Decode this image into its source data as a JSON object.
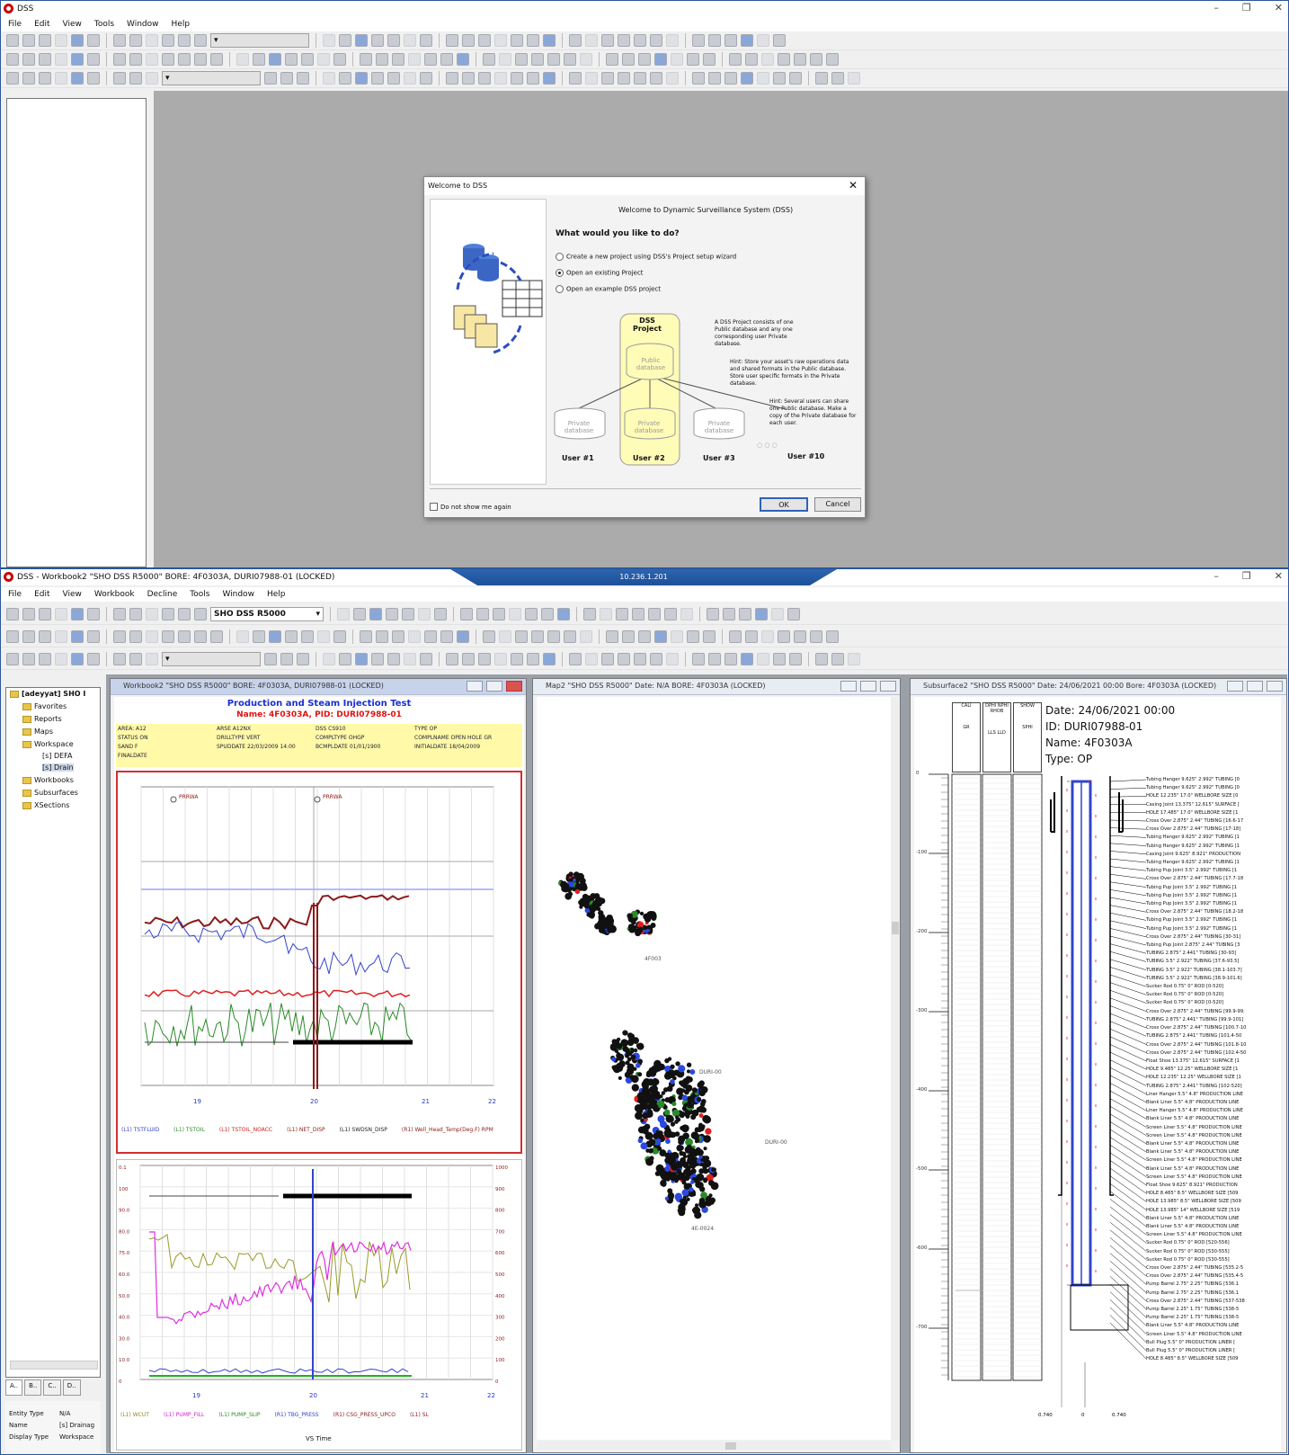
{
  "top_window": {
    "title": "DSS",
    "menu": [
      "File",
      "Edit",
      "View",
      "Tools",
      "Window",
      "Help"
    ],
    "window_controls": [
      "–",
      "❐",
      "✕"
    ]
  },
  "welcome_dialog": {
    "title": "Welcome to DSS",
    "header": "Welcome to Dynamic Surveillance System (DSS)",
    "question": "What would you like to do?",
    "options": [
      {
        "label": "Create a new project using DSS's Project setup wizard",
        "selected": false
      },
      {
        "label": "Open an existing Project",
        "selected": true
      },
      {
        "label": "Open an example DSS project",
        "selected": false
      }
    ],
    "diagram": {
      "project_label": "DSS Project",
      "public_db": "Public database",
      "private_db": "Private database",
      "users": [
        "User #1",
        "User #2",
        "User #3",
        "User #10"
      ],
      "ellipsis": "○ ○ ○"
    },
    "info_text": "A DSS Project consists of one Public database and any one corresponding user Private database.",
    "hint1": "Hint: Store your asset's raw operations data and shared formats in the Public database. Store user specific formats in the Private database.",
    "hint2": "Hint: Several users can share one Public database. Make a copy of the Private database for each user.",
    "dont_show": "Do not show me again",
    "ok": "OK",
    "cancel": "Cancel"
  },
  "bottom_window": {
    "title": "DSS - Workbook2 \"SHO DSS R5000\" BORE: 4F0303A, DURI07988-01 (LOCKED)",
    "menu": [
      "File",
      "Edit",
      "View",
      "Workbook",
      "Decline",
      "Tools",
      "Window",
      "Help"
    ],
    "remote_bar": "10.236.1.201",
    "combo_value": "SHO DSS R5000",
    "window_controls": [
      "–",
      "❐",
      "✕"
    ]
  },
  "tree": {
    "root": "[adeyyat] SHO I",
    "items": [
      "Favorites",
      "Reports",
      "Maps",
      "Workspace",
      "[s] DEFA",
      "[s] Drain",
      "Workbooks",
      "Subsurfaces",
      "XSections"
    ],
    "tabs": [
      "A..",
      "B..",
      "C..",
      "D.."
    ],
    "props": [
      {
        "k": "Entity Type",
        "v": "N/A"
      },
      {
        "k": "Name",
        "v": "[s] Drainag"
      },
      {
        "k": "Display Type",
        "v": "Workspace"
      }
    ]
  },
  "workbook": {
    "title": "Workbook2 \"SHO DSS R5000\" BORE: 4F0303A, DURI07988-01 (LOCKED)",
    "chart_title": "Production and Steam Injection Test",
    "chart_subtitle": "Name: 4F0303A, PID: DURI07988-01",
    "info_rows": [
      [
        "AREA: A12",
        "ARSE A12NX",
        "DSS CS910",
        "TYPE OP"
      ],
      [
        "STATUS ON",
        "DRILLTYPE VERT",
        "COMPLTYPE OHGP",
        "COMPLNAME OPEN HOLE GR"
      ],
      [
        "SAND F",
        "SPUDDATE 22/03/2009 14:00",
        "BCMPLDATE 01/01/1900",
        "INITIALDATE 18/04/2009"
      ],
      [
        "FINALDATE",
        "",
        "",
        ""
      ]
    ],
    "top_plot": {
      "x_years": [
        "19",
        "20",
        "21",
        "22"
      ],
      "legend": [
        "(L1) TSTFLUID",
        "(L1) TSTOIL",
        "(L1) TSTOIL_NOACC",
        "(L1) NET_DISP",
        "(L1) SWDSN_DISP",
        "(R1) Well_Head_Temp(Deg.F) RPM"
      ],
      "annotations": [
        "PRRWA",
        "PRRWA"
      ]
    },
    "bottom_plot": {
      "x_years": [
        "19",
        "20",
        "21",
        "22"
      ],
      "legend": [
        "(L1) WCUT",
        "(L1) PUMP_FILL",
        "(L1) PUMP_SLIP",
        "(R1) TBG_PRESS",
        "(R1) CSG_PRESS_UPCO",
        "(L1) SL"
      ],
      "x_label": "VS Time",
      "right_ticks": [
        "1000",
        "900",
        "800",
        "700",
        "600",
        "500",
        "400",
        "300",
        "200",
        "100",
        "0"
      ],
      "left_ticks": [
        "0.1",
        "100",
        "90.0",
        "80.0",
        "75.0",
        "60.0",
        "50.0",
        "40.0",
        "30.0",
        "10.0",
        "0"
      ]
    }
  },
  "map_window": {
    "title": "Map2 \"SHO DSS R5000\" Date: N/A BORE: 4F0303A (LOCKED)",
    "labels": [
      "DURI-00",
      "DURI-00",
      "4E-0024",
      "4F003"
    ]
  },
  "subsurface": {
    "title": "Subsurface2 \"SHO DSS R5000\" Date: 24/06/2021 00:00 Bore: 4F0303A (LOCKED)",
    "date": "Date: 24/06/2021 00:00",
    "id": "ID: DURI07988-01",
    "name": "Name: 4F0303A",
    "type": "Type: OP",
    "depth_ticks": [
      "0",
      "-100",
      "-200",
      "-300",
      "-400",
      "-500",
      "-600",
      "-700"
    ],
    "bottom_ticks": [
      "0.740",
      "0",
      "0.740"
    ],
    "track_headers": [
      "CALI",
      "GR",
      "DPHI NPHI RHOB",
      "LLS LLD",
      "SHOW",
      "SPHI"
    ],
    "components": [
      "Tubing Hanger 9.625\" 2.992\" TUBING [0",
      "Tubing Hanger 9.625\" 2.992\" TUBING [0",
      "HOLE 12.235\" 17.0\" WELLBORE SIZE [0",
      "Casing Joint 13.375\" 12.615\" SURFACE [",
      "HOLE 17.485\" 17.0\" WELLBORE SIZE [1",
      "Cross Over 2.875\" 2.44\" TUBING [16.6-17",
      "Cross Over 2.875\" 2.44\" TUBING [17-18]",
      "Tubing Hanger 9.625\" 2.992\" TUBING [1",
      "Tubing Hanger 9.625\" 2.992\" TUBING [1",
      "Casing Joint 9.625\" 8.921\" PRODUCTION",
      "Tubing Hanger 9.625\" 2.992\" TUBING [1",
      "Tubing Pup Joint 3.5\" 2.992\" TUBING [1",
      "Cross Over 2.875\" 2.44\" TUBING [17.7-18",
      "Tubing Pup Joint 3.5\" 2.992\" TUBING [1",
      "Tubing Pup Joint 3.5\" 2.992\" TUBING [1",
      "Tubing Pup Joint 3.5\" 2.992\" TUBING [1",
      "Cross Over 2.875\" 2.44\" TUBING [18.2-18",
      "Tubing Pup Joint 3.5\" 2.992\" TUBING [1",
      "Tubing Pup Joint 3.5\" 2.992\" TUBING [1",
      "Cross Over 2.875\" 2.44\" TUBING [30-31]",
      "Tubing Pup Joint 2.875\" 2.44\" TUBING [3",
      "TUBING 2.875\" 2.441\" TUBING [30-93]",
      "TUBING 3.5\" 2.922\" TUBING [37.6-93.5]",
      "TUBING 3.5\" 2.922\" TUBING [38.1-103.7]",
      "TUBING 3.5\" 2.922\" TUBING [38.9-101.6]",
      "Sucker Rod 0.75\" 0\" ROD [0-520]",
      "Sucker Rod 0.75\" 0\" ROD [0-520]",
      "Sucker Rod 0.75\" 0\" ROD [0-520]",
      "Cross Over 2.875\" 2.44\" TUBING [99.9-99.",
      "TUBING 2.875\" 2.441\" TUBING [99.9-101]",
      "Cross Over 2.875\" 2.44\" TUBING [100.7-10",
      "TUBING 2.875\" 2.441\" TUBING [101.4-50",
      "Cross Over 2.875\" 2.44\" TUBING [101.8-10",
      "Cross Over 2.875\" 2.44\" TUBING [102.4-50",
      "Float Shoe 13.375\" 12.615\" SURFACE [1",
      "HOLE 9.485\" 12.25\" WELLBORE SIZE [1",
      "HOLE 12.235\" 12.25\" WELLBORE SIZE [1",
      "TUBING 2.875\" 2.441\" TUBING [102-520]",
      "Liner Hanger 5.5\" 4.8\" PRODUCTION LINE",
      "Blank Liner 5.5\" 4.8\" PRODUCTION LINE",
      "Liner Hanger 5.5\" 4.8\" PRODUCTION LINE",
      "Blank Liner 5.5\" 4.8\" PRODUCTION LINE",
      "Screen Liner 5.5\" 4.8\" PRODUCTION LINE",
      "Screen Liner 5.5\" 4.8\" PRODUCTION LINE",
      "Blank Liner 5.5\" 4.8\" PRODUCTION LINE",
      "Blank Liner 5.5\" 4.8\" PRODUCTION LINE",
      "Screen Liner 5.5\" 4.8\" PRODUCTION LINE",
      "Blank Liner 5.5\" 4.8\" PRODUCTION LINE",
      "Screen Liner 5.5\" 4.8\" PRODUCTION LINE",
      "Float Shoe 9.625\" 8.921\" PRODUCTION",
      "HOLE 8.485\" 8.5\" WELLBORE SIZE [509",
      "HOLE 13.985\" 8.5\" WELLBORE SIZE [509",
      "HOLE 13.985\" 14\" WELLBORE SIZE [519",
      "Blank Liner 5.5\" 4.8\" PRODUCTION LINE",
      "Blank Liner 5.5\" 4.8\" PRODUCTION LINE",
      "Screen Liner 5.5\" 4.8\" PRODUCTION LINE",
      "Sucker Rod 0.75\" 0\" ROD [520-556]",
      "Sucker Rod 0.75\" 0\" ROD [530-555]",
      "Sucker Rod 0.75\" 0\" ROD [530-555]",
      "Cross Over 2.875\" 2.44\" TUBING [535.2-5",
      "Cross Over 2.875\" 2.44\" TUBING [535.4-5",
      "Pump Barrel 2.75\" 2.25\" TUBING [536.1",
      "Pump Barrel 2.75\" 2.25\" TUBING [536.1",
      "Cross Over 2.875\" 2.44\" TUBING [537-538",
      "Pump Barrel 2.25\" 1.75\" TUBING [538-5",
      "Pump Barrel 2.25\" 1.75\" TUBING [538-5",
      "Blank Liner 5.5\" 4.8\" PRODUCTION LINE",
      "Screen Liner 5.5\" 4.8\" PRODUCTION LINE",
      "Bull Plug 5.5\" 0\" PRODUCTION LINER [",
      "Bull Plug 5.5\" 0\" PRODUCTION LINER [",
      "HOLE 8.485\" 8.5\" WELLBORE SIZE [509"
    ]
  }
}
